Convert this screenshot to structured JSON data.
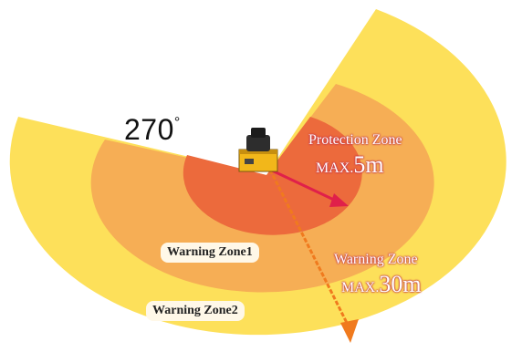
{
  "angle": {
    "value": "270",
    "unit": "°"
  },
  "protection_zone": {
    "title": "Protection Zone",
    "max_prefix": "MAX.",
    "max_value": "5m"
  },
  "warning_zone": {
    "title": "Warning Zone",
    "max_prefix": "MAX.",
    "max_value": "30m"
  },
  "warning_zone1": {
    "label": "Warning Zone1"
  },
  "warning_zone2": {
    "label": "Warning Zone2"
  },
  "colors": {
    "warning_zone2": "#fde05a",
    "warning_zone1": "#f6ae55",
    "protection_zone": "#ec6a3c",
    "protection_arrow": "#e0204a",
    "warning_arrow": "#f07a1e",
    "label_outline": "#c03048"
  },
  "icons": [
    "laser-scanner-icon"
  ]
}
